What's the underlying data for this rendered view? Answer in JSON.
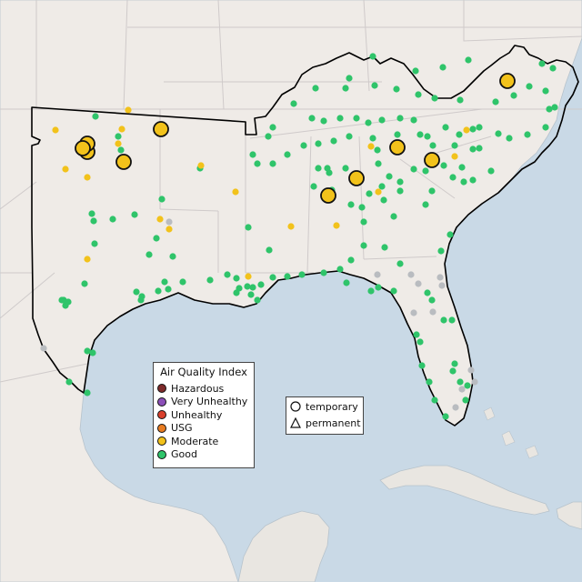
{
  "colors": {
    "land": "#efebe7",
    "land_south": "#e9e6e1",
    "water": "#c9d9e6",
    "border": "#cfcaca",
    "region_outline": "#000000",
    "good": "#2fc46a",
    "moderate": "#f2c21b",
    "unknown": "#b9bcc0",
    "hazardous": "#7d2a2a",
    "very_unhealthy": "#8c4fb8",
    "unhealthy": "#d9402c",
    "usg": "#e87c22"
  },
  "legend_aqi": {
    "title": "Air Quality Index",
    "items": [
      {
        "label": "Hazardous",
        "color": "#7d2a2a"
      },
      {
        "label": "Very Unhealthy",
        "color": "#8c4fb8"
      },
      {
        "label": "Unhealthy",
        "color": "#d9402c"
      },
      {
        "label": "USG",
        "color": "#e87c22"
      },
      {
        "label": "Moderate",
        "color": "#f2c21b"
      },
      {
        "label": "Good",
        "color": "#2fc46a"
      }
    ]
  },
  "legend_type": {
    "temporary_label": "temporary",
    "permanent_label": "permanent"
  }
}
